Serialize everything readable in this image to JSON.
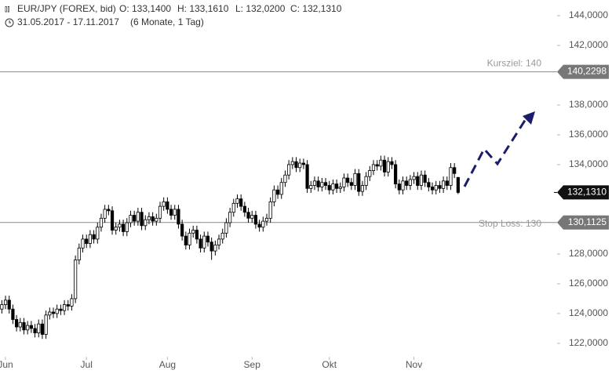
{
  "header": {
    "symbol": "EUR/JPY (FOREX, bid)",
    "ohlc": [
      "O: 133,1400",
      "H: 133,1610",
      "L: 132,0200",
      "C: 132,1310"
    ],
    "range": "31.05.2017 - 17.11.2017",
    "period": "(6 Monate, 1 Tag)"
  },
  "chart_data": {
    "type": "candlestick",
    "open": [
      124.3,
      124.6,
      124.9,
      124.3,
      123.6,
      123.1,
      123.4,
      122.9,
      123.2,
      123.0,
      122.7,
      123.3,
      122.6,
      123.9,
      124.1,
      124.0,
      124.3,
      124.2,
      124.6,
      124.5,
      125.0,
      127.6,
      128.4,
      129.0,
      128.7,
      129.3,
      129.0,
      129.8,
      130.4,
      131.0,
      130.9,
      129.6,
      129.8,
      130.0,
      129.5,
      130.1,
      130.6,
      130.2,
      130.8,
      129.9,
      130.3,
      130.5,
      130.2,
      130.4,
      131.2,
      131.5,
      131.0,
      130.6,
      131.0,
      130.0,
      129.2,
      128.6,
      129.4,
      129.6,
      129.0,
      128.4,
      129.2,
      128.8,
      128.2,
      128.6,
      129.0,
      129.4,
      130.1,
      130.8,
      131.4,
      131.7,
      131.2,
      130.8,
      130.4,
      130.6,
      130.0,
      129.8,
      130.2,
      130.4,
      131.5,
      132.3,
      132.0,
      132.8,
      133.3,
      134.0,
      134.2,
      133.8,
      134.1,
      134.0,
      132.4,
      132.6,
      132.9,
      132.5,
      132.8,
      132.6,
      132.3,
      132.7,
      132.4,
      132.5,
      133.1,
      132.8,
      132.6,
      133.4,
      132.2,
      132.6,
      133.2,
      133.6,
      134.0,
      133.9,
      134.3,
      133.5,
      134.2,
      134.0,
      132.7,
      132.3,
      132.9,
      132.6,
      133.0,
      133.2,
      132.6,
      133.3,
      132.8,
      132.5,
      132.3,
      132.6,
      132.4,
      132.9,
      132.6,
      133.8,
      133.14
    ],
    "high": [
      124.9,
      125.2,
      125.2,
      124.6,
      123.9,
      123.7,
      123.7,
      123.5,
      123.5,
      123.3,
      123.6,
      123.6,
      124.2,
      124.4,
      124.4,
      124.6,
      124.6,
      124.9,
      124.9,
      125.3,
      127.9,
      128.7,
      129.3,
      129.3,
      129.6,
      129.6,
      130.1,
      130.7,
      131.3,
      131.3,
      131.2,
      130.1,
      130.3,
      130.3,
      130.4,
      130.9,
      130.9,
      131.1,
      131.1,
      130.6,
      130.8,
      130.8,
      130.7,
      131.5,
      131.8,
      131.8,
      131.3,
      131.3,
      131.3,
      130.3,
      129.5,
      129.7,
      129.9,
      129.9,
      129.3,
      129.5,
      129.5,
      129.1,
      128.9,
      129.3,
      129.7,
      130.4,
      131.1,
      131.7,
      132.0,
      132.0,
      131.5,
      131.1,
      130.9,
      130.9,
      130.3,
      130.5,
      130.7,
      131.8,
      132.6,
      132.6,
      133.1,
      133.6,
      134.3,
      134.5,
      134.5,
      134.4,
      134.4,
      134.3,
      132.9,
      133.2,
      133.2,
      133.1,
      133.1,
      132.9,
      133.0,
      133.0,
      132.8,
      133.4,
      133.4,
      133.1,
      133.7,
      133.7,
      132.9,
      133.5,
      133.9,
      134.3,
      134.3,
      134.6,
      134.6,
      134.5,
      134.5,
      134.3,
      133.0,
      133.2,
      133.2,
      133.3,
      133.5,
      133.5,
      133.6,
      133.6,
      133.1,
      132.8,
      132.9,
      132.9,
      133.2,
      133.2,
      134.1,
      134.1,
      133.161
    ],
    "low": [
      124.0,
      124.3,
      124.0,
      123.3,
      122.8,
      122.8,
      122.6,
      122.6,
      122.7,
      122.4,
      122.4,
      122.3,
      122.3,
      123.6,
      123.7,
      123.7,
      123.9,
      123.9,
      124.2,
      124.2,
      124.7,
      127.3,
      128.1,
      128.4,
      128.4,
      128.7,
      128.7,
      129.5,
      130.1,
      130.6,
      129.3,
      129.3,
      129.5,
      129.2,
      129.2,
      129.8,
      129.9,
      129.9,
      129.6,
      129.6,
      130.0,
      129.9,
      129.9,
      130.1,
      130.9,
      130.7,
      130.3,
      130.3,
      129.7,
      128.9,
      128.3,
      128.3,
      129.1,
      128.7,
      128.1,
      128.1,
      128.5,
      127.6,
      127.9,
      128.3,
      128.7,
      129.1,
      129.8,
      130.5,
      131.1,
      130.9,
      130.5,
      130.1,
      130.1,
      129.7,
      129.5,
      129.5,
      129.9,
      130.1,
      131.2,
      131.7,
      131.7,
      132.5,
      133.0,
      133.7,
      133.5,
      133.5,
      133.7,
      132.1,
      132.1,
      132.3,
      132.2,
      132.2,
      132.3,
      132.0,
      132.0,
      132.1,
      132.1,
      132.2,
      132.5,
      132.3,
      132.3,
      131.9,
      131.9,
      132.3,
      132.9,
      133.3,
      133.6,
      133.6,
      133.2,
      133.2,
      133.7,
      132.4,
      132.0,
      132.0,
      132.3,
      132.3,
      132.7,
      132.3,
      132.3,
      132.5,
      132.2,
      132.0,
      132.0,
      132.1,
      132.1,
      132.3,
      132.3,
      133.1,
      132.02
    ],
    "close": [
      124.6,
      124.9,
      124.3,
      123.6,
      123.1,
      123.4,
      122.9,
      123.2,
      123.0,
      122.7,
      123.3,
      122.6,
      123.9,
      124.1,
      124.0,
      124.3,
      124.2,
      124.6,
      124.5,
      125.0,
      127.6,
      128.4,
      129.0,
      128.7,
      129.3,
      129.0,
      129.8,
      130.4,
      131.0,
      130.9,
      129.6,
      129.8,
      130.0,
      129.5,
      130.1,
      130.6,
      130.2,
      130.8,
      129.9,
      130.3,
      130.5,
      130.2,
      130.4,
      131.2,
      131.5,
      131.0,
      130.6,
      131.0,
      130.0,
      129.2,
      128.6,
      129.4,
      129.6,
      129.0,
      128.4,
      129.2,
      128.8,
      128.2,
      128.6,
      129.0,
      129.4,
      130.1,
      130.8,
      131.4,
      131.7,
      131.2,
      130.8,
      130.4,
      130.6,
      130.0,
      129.8,
      130.2,
      130.4,
      131.5,
      132.3,
      132.0,
      132.8,
      133.3,
      134.0,
      134.2,
      133.8,
      134.1,
      134.0,
      132.4,
      132.6,
      132.9,
      132.5,
      132.8,
      132.6,
      132.3,
      132.7,
      132.4,
      132.5,
      133.1,
      132.8,
      132.6,
      133.4,
      132.2,
      132.6,
      133.2,
      133.6,
      134.0,
      133.9,
      134.3,
      133.5,
      134.2,
      134.0,
      132.7,
      132.3,
      132.9,
      132.6,
      133.0,
      133.2,
      132.6,
      133.3,
      132.8,
      132.5,
      132.3,
      132.6,
      132.4,
      132.9,
      132.6,
      133.8,
      133.4,
      132.131
    ],
    "xlim": [
      -0.5,
      150.9
    ],
    "xticks": [
      {
        "value": 1,
        "label": "Jun"
      },
      {
        "value": 23,
        "label": "Jul"
      },
      {
        "value": 45,
        "label": "Aug"
      },
      {
        "value": 68,
        "label": "Sep"
      },
      {
        "value": 89,
        "label": "Okt"
      },
      {
        "value": 112,
        "label": "Nov"
      }
    ],
    "ylim": [
      121.1,
      145.05
    ],
    "yticks": [
      {
        "value": 144,
        "label": "144,0000"
      },
      {
        "value": 142,
        "label": "142,0000"
      },
      {
        "value": 138,
        "label": "138,0000"
      },
      {
        "value": 136,
        "label": "136,0000"
      },
      {
        "value": 134,
        "label": "134,0000"
      },
      {
        "value": 128,
        "label": "128,0000"
      },
      {
        "value": 126,
        "label": "126,0000"
      },
      {
        "value": 124,
        "label": "124,0000"
      },
      {
        "value": 122,
        "label": "122,0000"
      }
    ],
    "levels": [
      {
        "name": "Kursziel: 140",
        "value": 140.2298,
        "label": "140,2298"
      },
      {
        "name": "Stop Loss: 130",
        "value": 130.1125,
        "label": "130,1125"
      }
    ],
    "last_price": {
      "value": 132.131,
      "label": "132,1310"
    }
  }
}
